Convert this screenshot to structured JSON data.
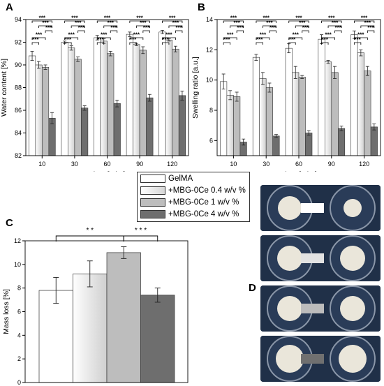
{
  "panels": {
    "A": "A",
    "B": "B",
    "C": "C",
    "D": "D"
  },
  "legend": {
    "items": [
      {
        "label": "GelMA",
        "color": "#ffffff"
      },
      {
        "label": "+MBG-0Ce 0.4 w/v %",
        "color": "#e6e6e6"
      },
      {
        "label": "+MBG-0Ce 1 w/v %",
        "color": "#bdbdbd"
      },
      {
        "label": "+MBG-0Ce 4 w/v %",
        "color": "#6e6e6e"
      }
    ]
  },
  "chart_data": [
    {
      "type": "bar",
      "panel": "A",
      "ylabel": "Water content [%]",
      "xlabel": "Time [min.]",
      "ylim": [
        82,
        94
      ],
      "yticks": [
        "82",
        "84",
        "86",
        "88",
        "90",
        "92",
        "94"
      ],
      "categories": [
        "10",
        "30",
        "60",
        "90",
        "120"
      ],
      "series": [
        {
          "name": "GelMA",
          "values": [
            90.8,
            92.0,
            92.4,
            92.7,
            92.9
          ],
          "errors": [
            0.4,
            0.1,
            0.2,
            0.2,
            0.15
          ]
        },
        {
          "name": "+MBG-0Ce 0.4 w/v %",
          "values": [
            90.0,
            91.5,
            92.1,
            91.8,
            92.2
          ],
          "errors": [
            0.3,
            0.2,
            0.2,
            0.1,
            0.1
          ]
        },
        {
          "name": "+MBG-0Ce 1 w/v %",
          "values": [
            89.8,
            90.5,
            91.0,
            91.3,
            91.4
          ],
          "errors": [
            0.2,
            0.2,
            0.2,
            0.3,
            0.25
          ]
        },
        {
          "name": "+MBG-0Ce 4 w/v %",
          "values": [
            85.3,
            86.2,
            86.6,
            87.1,
            87.3
          ],
          "errors": [
            0.5,
            0.2,
            0.3,
            0.3,
            0.4
          ]
        }
      ],
      "annotations": [
        "***",
        "**",
        "*"
      ]
    },
    {
      "type": "bar",
      "panel": "B",
      "ylabel": "Swelling ratio [a.u.]",
      "xlabel": "Time [min.]",
      "ylim": [
        5,
        14
      ],
      "yticks": [
        "6",
        "8",
        "10",
        "12",
        "14"
      ],
      "categories": [
        "10",
        "30",
        "60",
        "90",
        "120"
      ],
      "series": [
        {
          "name": "GelMA",
          "values": [
            9.9,
            11.5,
            12.1,
            12.7,
            13.0
          ],
          "errors": [
            0.5,
            0.2,
            0.3,
            0.3,
            0.25
          ]
        },
        {
          "name": "+MBG-0Ce 0.4 w/v %",
          "values": [
            9.0,
            10.1,
            10.5,
            11.2,
            11.8
          ],
          "errors": [
            0.3,
            0.4,
            0.4,
            0.1,
            0.2
          ]
        },
        {
          "name": "+MBG-0Ce 1 w/v %",
          "values": [
            8.9,
            9.5,
            10.2,
            10.5,
            10.6
          ],
          "errors": [
            0.3,
            0.3,
            0.1,
            0.4,
            0.3
          ]
        },
        {
          "name": "+MBG-0Ce 4 w/v %",
          "values": [
            5.9,
            6.3,
            6.5,
            6.8,
            6.9
          ],
          "errors": [
            0.2,
            0.1,
            0.15,
            0.15,
            0.2
          ]
        }
      ],
      "annotations": [
        "***",
        "**",
        "*"
      ]
    },
    {
      "type": "bar",
      "panel": "C",
      "ylabel": "Mass loss [%]",
      "ylim": [
        0,
        12
      ],
      "yticks": [
        "0",
        "2",
        "4",
        "6",
        "8",
        "10",
        "12"
      ],
      "categories": [
        "GelMA",
        "+MBG-0Ce 0.4 w/v %",
        "+MBG-0Ce 1 w/v %",
        "+MBG-0Ce 4 w/v %"
      ],
      "values": [
        7.8,
        9.2,
        11.0,
        7.4
      ],
      "errors": [
        1.1,
        1.1,
        0.5,
        0.6
      ],
      "annotations": [
        "* *",
        "* * *"
      ]
    }
  ]
}
